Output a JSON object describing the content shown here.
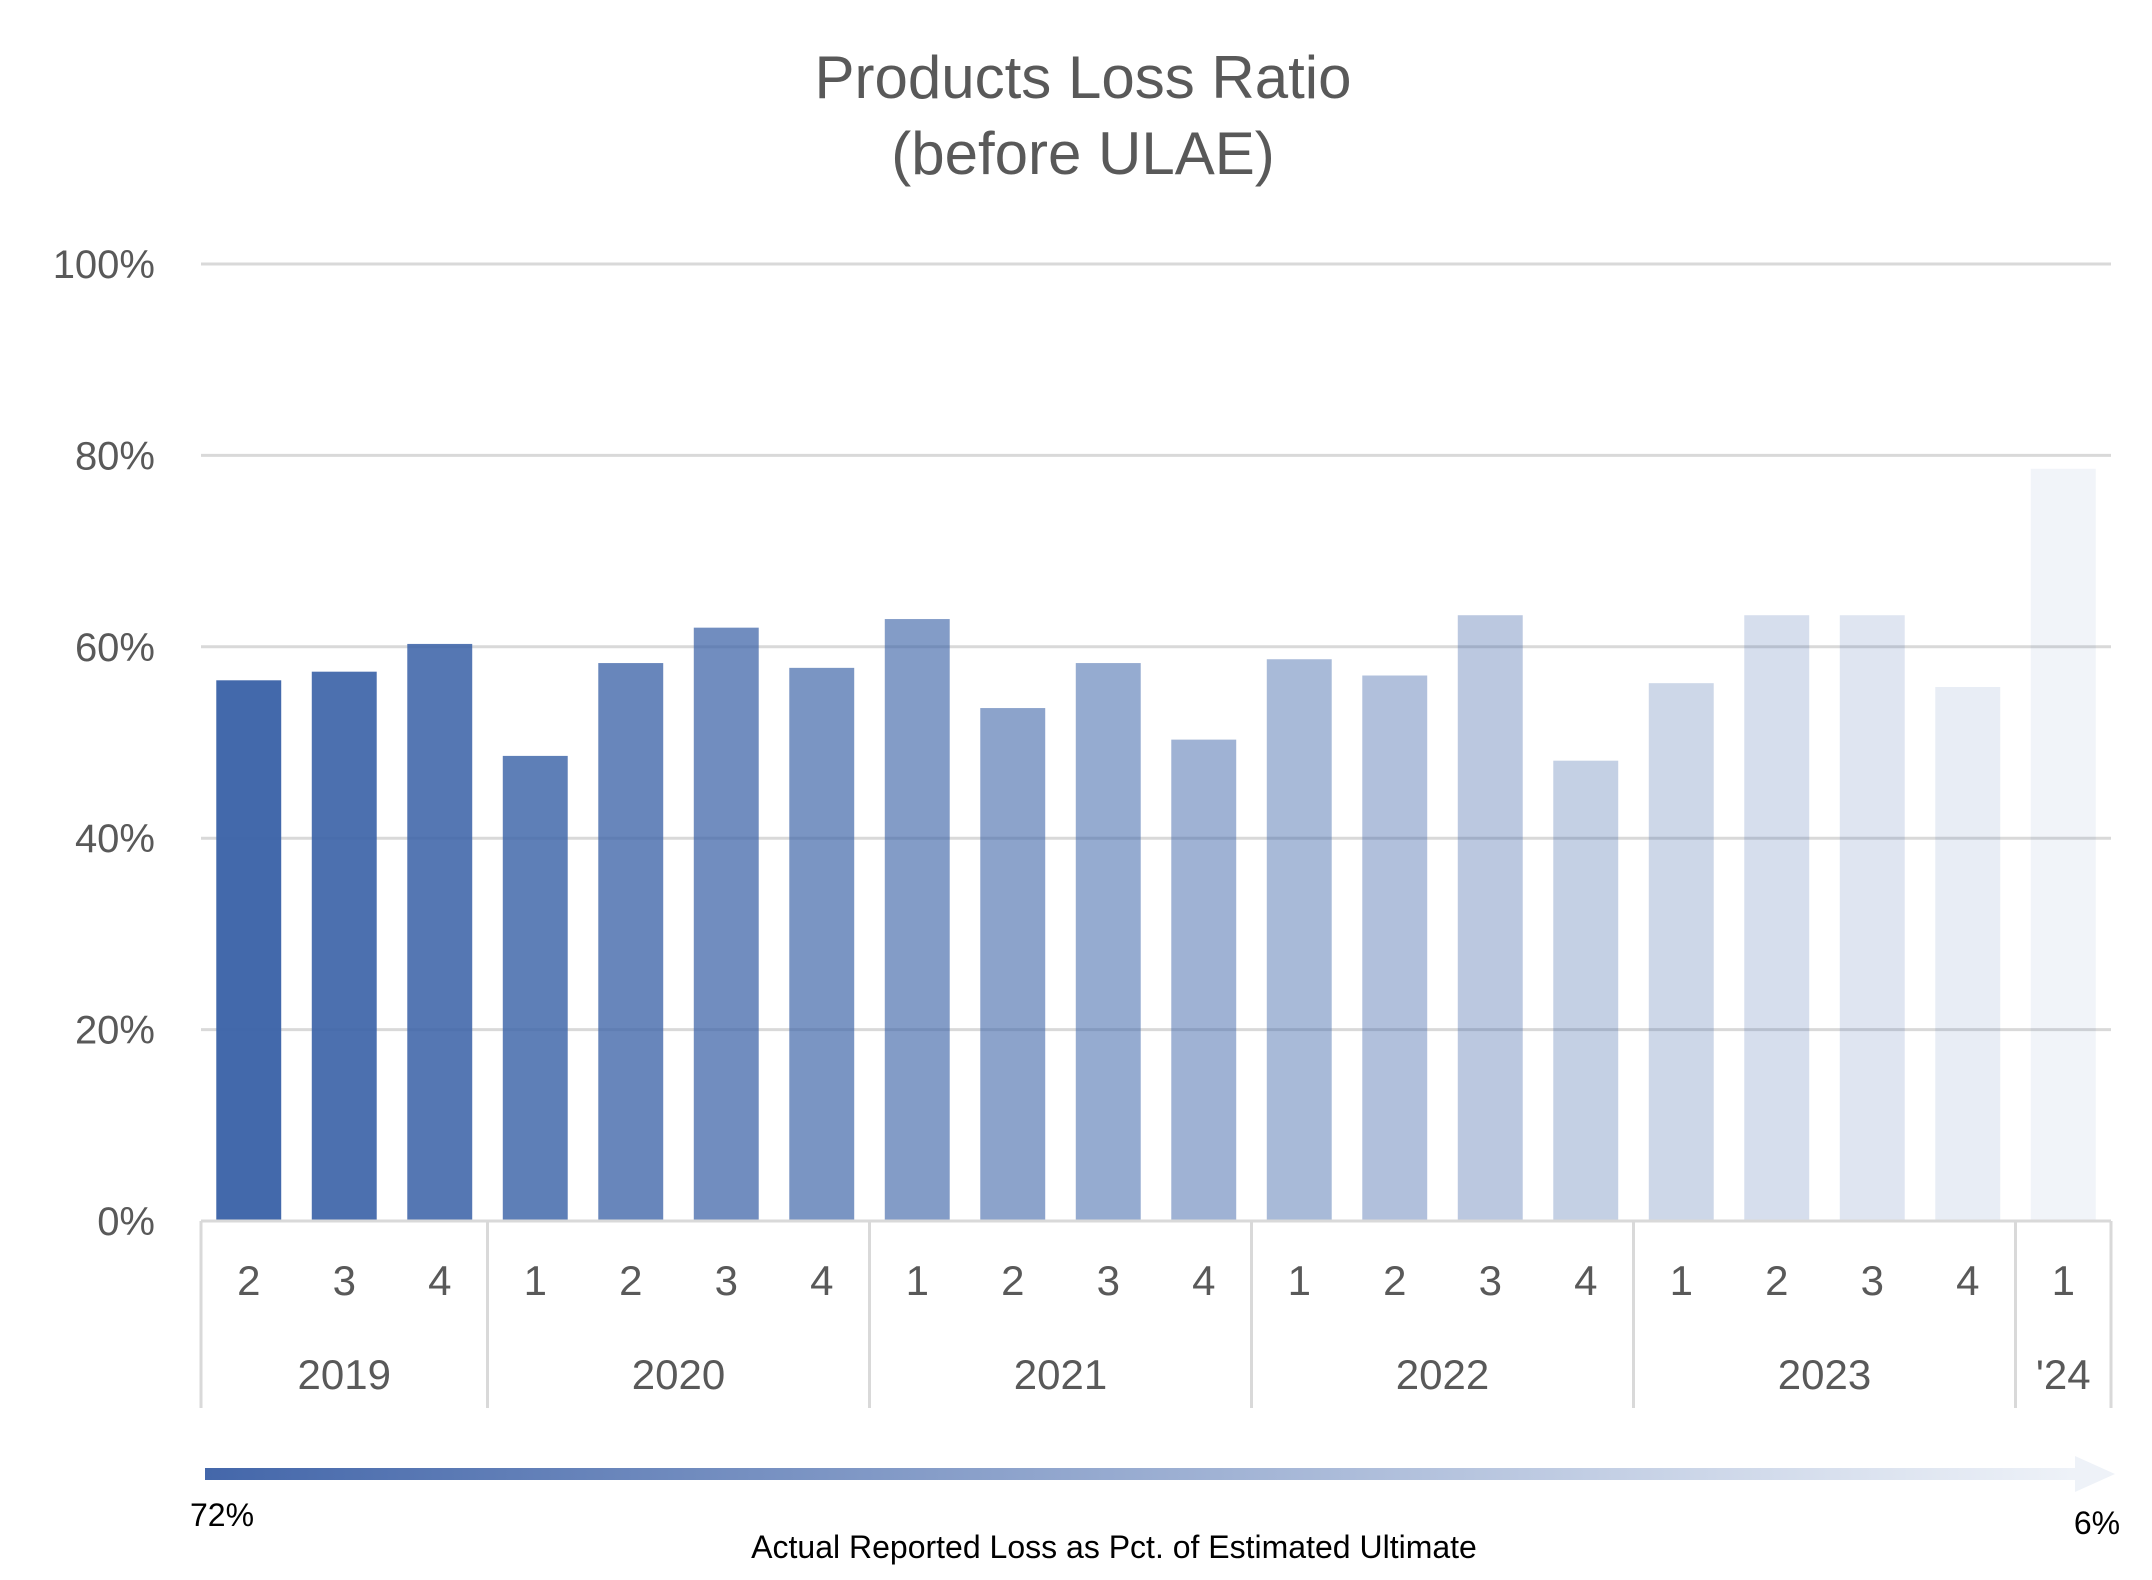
{
  "chart_data": {
    "type": "bar",
    "title": "Products Loss Ratio",
    "subtitle": "(before ULAE)",
    "ylim": [
      0,
      100
    ],
    "y_ticks": [
      "0%",
      "20%",
      "40%",
      "60%",
      "80%",
      "100%"
    ],
    "grid": true,
    "groups": [
      {
        "label": "2019",
        "quarters": [
          "2",
          "3",
          "4"
        ]
      },
      {
        "label": "2020",
        "quarters": [
          "1",
          "2",
          "3",
          "4"
        ]
      },
      {
        "label": "2021",
        "quarters": [
          "1",
          "2",
          "3",
          "4"
        ]
      },
      {
        "label": "2022",
        "quarters": [
          "1",
          "2",
          "3",
          "4"
        ]
      },
      {
        "label": "2023",
        "quarters": [
          "1",
          "2",
          "3",
          "4"
        ]
      },
      {
        "label": "'24",
        "quarters": [
          "1"
        ]
      }
    ],
    "values": [
      56.5,
      57.4,
      60.3,
      48.6,
      58.3,
      62.0,
      57.8,
      62.9,
      53.6,
      58.3,
      50.3,
      58.7,
      57.0,
      63.3,
      48.1,
      56.2,
      63.3,
      63.3,
      55.8,
      78.6
    ],
    "bar_color": "#3D64A8",
    "gradient_legend": {
      "start_label": "72%",
      "end_label": "6%",
      "caption": "Actual Reported  Loss as Pct. of Estimated Ultimate",
      "start_color": "#4467AA",
      "end_color": "#EEF2F8"
    }
  }
}
